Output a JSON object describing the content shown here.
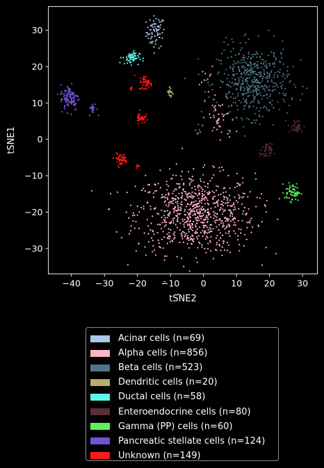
{
  "chart_data": {
    "type": "scatter",
    "title": "",
    "xlabel": "tSNE2",
    "ylabel": "tSNE1",
    "xlim": [
      -47,
      34.5
    ],
    "ylim": [
      -37,
      36.5
    ],
    "xticks": [
      -40,
      -30,
      -20,
      -10,
      0,
      10,
      20,
      30
    ],
    "yticks": [
      -30,
      -20,
      -10,
      0,
      10,
      20,
      30
    ],
    "grid": false,
    "legend_position": "below-chart",
    "series": [
      {
        "name": "Acinar cells (n=69)",
        "color": "#aec7e8",
        "n": 69,
        "clusters": [
          {
            "cx": -14.5,
            "cy": 29.5,
            "sx": 1.4,
            "sy": 2.2,
            "n": 69
          }
        ]
      },
      {
        "name": "Alpha cells (n=856)",
        "color": "#ffb3c6",
        "n": 856,
        "clusters": [
          {
            "cx": -2.5,
            "cy": -20.5,
            "sx": 9.0,
            "sy": 5.5,
            "n": 800
          },
          {
            "cx": 5,
            "cy": 5.5,
            "sx": 2.2,
            "sy": 3.5,
            "n": 45
          },
          {
            "cx": 1,
            "cy": 17,
            "sx": 1,
            "sy": 1.5,
            "n": 11
          }
        ]
      },
      {
        "name": "Beta cells (n=523)",
        "color": "#4f7585",
        "n": 523,
        "clusters": [
          {
            "cx": 15,
            "cy": 16,
            "sx": 5.5,
            "sy": 4.8,
            "n": 513
          },
          {
            "cx": -1.5,
            "cy": 2.5,
            "sx": 0.6,
            "sy": 1,
            "n": 10
          }
        ]
      },
      {
        "name": "Dendritic cells (n=20)",
        "color": "#b5ad6a",
        "n": 20,
        "clusters": [
          {
            "cx": -10,
            "cy": 13,
            "sx": 0.5,
            "sy": 0.9,
            "n": 20
          }
        ]
      },
      {
        "name": "Ductal cells (n=58)",
        "color": "#5ef6e8",
        "n": 58,
        "clusters": [
          {
            "cx": -22,
            "cy": 22.5,
            "sx": 1.3,
            "sy": 0.9,
            "n": 58
          }
        ]
      },
      {
        "name": "Enteroendocrine cells (n=80)",
        "color": "#5a2d38",
        "n": 80,
        "clusters": [
          {
            "cx": 19,
            "cy": -3.5,
            "sx": 0.9,
            "sy": 1.1,
            "n": 40
          },
          {
            "cx": 28,
            "cy": 3.5,
            "sx": 1.2,
            "sy": 1.0,
            "n": 40
          }
        ]
      },
      {
        "name": "Gamma (PP) cells (n=60)",
        "color": "#5cf15c",
        "n": 60,
        "clusters": [
          {
            "cx": 27,
            "cy": -14.5,
            "sx": 1.2,
            "sy": 1.2,
            "n": 60
          }
        ]
      },
      {
        "name": "Pancreatic stellate cells (n=124)",
        "color": "#7052d4",
        "n": 124,
        "clusters": [
          {
            "cx": -40.5,
            "cy": 11.5,
            "sx": 1.4,
            "sy": 1.8,
            "n": 104
          },
          {
            "cx": -33.5,
            "cy": 8.5,
            "sx": 0.6,
            "sy": 0.9,
            "n": 20
          }
        ]
      },
      {
        "name": "Unknown (n=149)",
        "color": "#ff1a1a",
        "n": 149,
        "clusters": [
          {
            "cx": -17.5,
            "cy": 15.5,
            "sx": 1.0,
            "sy": 1.0,
            "n": 50
          },
          {
            "cx": -19,
            "cy": 6,
            "sx": 0.7,
            "sy": 0.8,
            "n": 35
          },
          {
            "cx": -25,
            "cy": -5.5,
            "sx": 1.0,
            "sy": 0.8,
            "n": 50
          },
          {
            "cx": -22,
            "cy": 14,
            "sx": 0.4,
            "sy": 0.3,
            "n": 6
          },
          {
            "cx": -20,
            "cy": -7.5,
            "sx": 0.4,
            "sy": 0.4,
            "n": 8
          }
        ]
      }
    ]
  }
}
